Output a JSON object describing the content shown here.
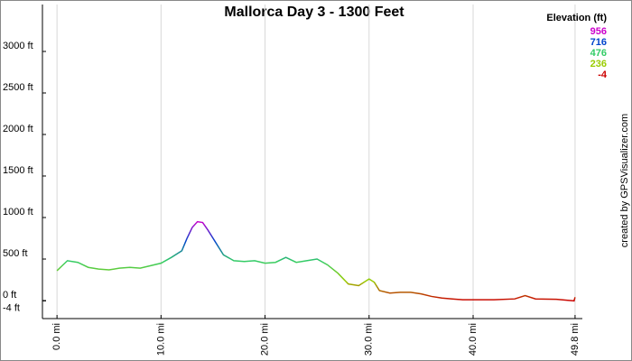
{
  "chart_data": {
    "type": "line",
    "title": "Mallorca Day 3 - 1300 Feet",
    "credit": "created by GPSVisualizer.com",
    "x": [
      0,
      0.5,
      1,
      2,
      3,
      4,
      5,
      6,
      7,
      8,
      9,
      10,
      11,
      12,
      12.5,
      13,
      13.5,
      14,
      14.5,
      15,
      16,
      17,
      18,
      19,
      20,
      21,
      22,
      23,
      24,
      25,
      26,
      27,
      28,
      29,
      30,
      30.5,
      31,
      32,
      33,
      34,
      35,
      36,
      37,
      38,
      39,
      40,
      42,
      44,
      45,
      46,
      48,
      49.7,
      49.8
    ],
    "series": [
      {
        "name": "Elevation (ft)",
        "values": [
          360,
          420,
          480,
          460,
          400,
          380,
          370,
          390,
          400,
          390,
          420,
          450,
          520,
          600,
          750,
          880,
          950,
          940,
          850,
          750,
          550,
          480,
          470,
          480,
          450,
          460,
          520,
          460,
          480,
          500,
          430,
          330,
          200,
          180,
          260,
          220,
          120,
          90,
          100,
          100,
          80,
          50,
          30,
          20,
          10,
          10,
          10,
          20,
          60,
          20,
          15,
          -4,
          40
        ]
      }
    ],
    "legend": {
      "position": "top-right",
      "title": "Elevation (ft)",
      "items": [
        {
          "value": 956,
          "color": "#cc00cc"
        },
        {
          "value": 716,
          "color": "#0044cc"
        },
        {
          "value": 476,
          "color": "#33cc66"
        },
        {
          "value": 236,
          "color": "#99cc00"
        },
        {
          "value": -4,
          "color": "#cc0000"
        }
      ]
    },
    "xlim": [
      -1.4,
      50.5
    ],
    "ylim": [
      -217,
      3565
    ],
    "xticks": [
      {
        "value": 0,
        "label": "0.0 mi"
      },
      {
        "value": 10,
        "label": "10.0 mi"
      },
      {
        "value": 20,
        "label": "20.0 mi"
      },
      {
        "value": 30,
        "label": "30.0 mi"
      },
      {
        "value": 40,
        "label": "40.0 mi"
      },
      {
        "value": 49.8,
        "label": "49.8 mi"
      }
    ],
    "yticks": [
      {
        "value": -4,
        "label": "-4 ft"
      },
      {
        "value": 0,
        "label": "0 ft"
      },
      {
        "value": 500,
        "label": "500 ft"
      },
      {
        "value": 1000,
        "label": "1000 ft"
      },
      {
        "value": 1500,
        "label": "1500 ft"
      },
      {
        "value": 2000,
        "label": "2000 ft"
      },
      {
        "value": 2500,
        "label": "2500 ft"
      },
      {
        "value": 3000,
        "label": "3000 ft"
      }
    ],
    "grid": "x"
  }
}
